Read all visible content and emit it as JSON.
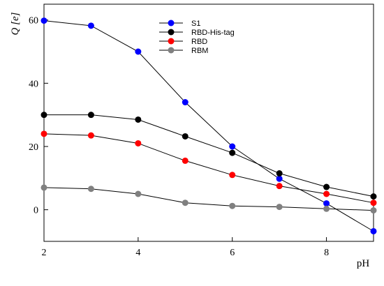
{
  "chart_data": {
    "type": "line",
    "xlabel": "pH",
    "ylabel": "Q [e]",
    "xlim": [
      2,
      9
    ],
    "ylim": [
      -10,
      65
    ],
    "xticks": [
      2,
      4,
      6,
      8
    ],
    "yticks": [
      0,
      20,
      40,
      60
    ],
    "grid": false,
    "legend_position": "top-center",
    "x": [
      2,
      3,
      4,
      5,
      6,
      7,
      8,
      9
    ],
    "series": [
      {
        "name": "S1",
        "color": "#0000ff",
        "values": [
          59.8,
          58.2,
          50.0,
          34.0,
          20.0,
          9.8,
          2.0,
          -6.8
        ]
      },
      {
        "name": "RBD-His-tag",
        "color": "#000000",
        "values": [
          30.0,
          30.0,
          28.5,
          23.2,
          18.0,
          11.5,
          7.2,
          4.2
        ]
      },
      {
        "name": "RBD",
        "color": "#ff0000",
        "values": [
          24.0,
          23.5,
          21.0,
          15.5,
          11.0,
          7.5,
          5.0,
          2.2
        ]
      },
      {
        "name": "RBM",
        "color": "#808080",
        "values": [
          7.0,
          6.6,
          5.0,
          2.2,
          1.2,
          0.9,
          0.3,
          -0.2
        ]
      }
    ]
  }
}
